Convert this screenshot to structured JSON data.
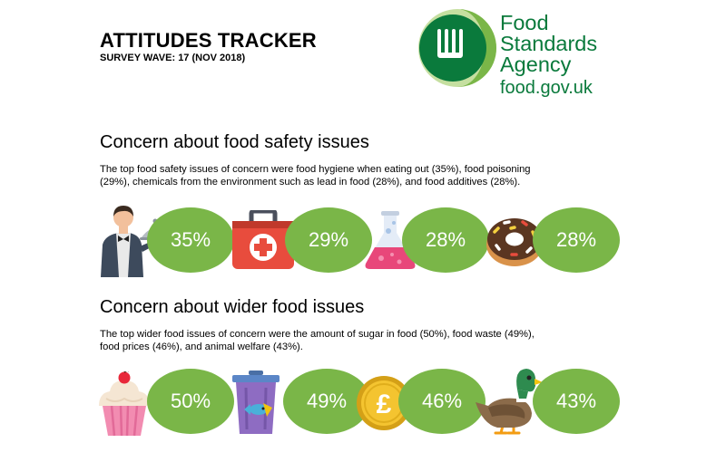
{
  "header": {
    "title": "ATTITUDES TRACKER",
    "subtitle": "SURVEY WAVE: 17 (NOV 2018)"
  },
  "logo": {
    "lines": [
      "Food",
      "Standards",
      "Agency"
    ],
    "url": "food.gov.uk",
    "brand_color": "#0a7a3c"
  },
  "sections": [
    {
      "heading": "Concern about food safety issues",
      "description_line1": "The top food safety issues of concern were food hygiene when eating out (35%), food poisoning",
      "description_line2": "(29%), chemicals from the environment such as lead in food (28%), and food additives (28%).",
      "stats": [
        {
          "icon": "waiter-icon",
          "value": "35%"
        },
        {
          "icon": "first-aid-kit-icon",
          "value": "29%"
        },
        {
          "icon": "chemical-flask-icon",
          "value": "28%"
        },
        {
          "icon": "donut-icon",
          "value": "28%"
        }
      ]
    },
    {
      "heading": "Concern about wider food issues",
      "description_line1": "The top wider food issues of concern were the amount of sugar in food (50%), food waste (49%),",
      "description_line2": "food prices (46%), and animal welfare (43%).",
      "stats": [
        {
          "icon": "cupcake-icon",
          "value": "50%"
        },
        {
          "icon": "waste-bin-icon",
          "value": "49%"
        },
        {
          "icon": "pound-coin-icon",
          "value": "46%"
        },
        {
          "icon": "duck-icon",
          "value": "43%"
        }
      ]
    }
  ],
  "colors": {
    "pill": "#7ab648",
    "pill_text": "#ffffff"
  }
}
